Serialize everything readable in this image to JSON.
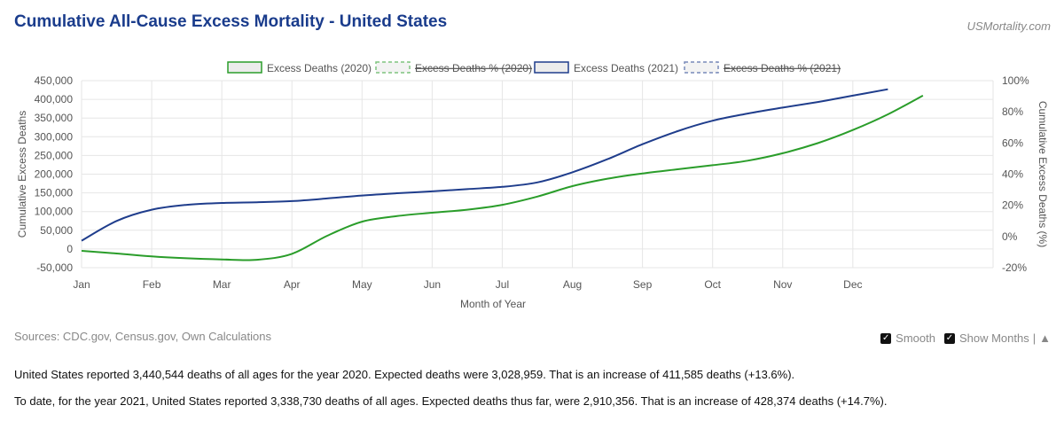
{
  "header": {
    "title": "Cumulative All-Cause Excess Mortality - United States",
    "brand": "USMortality.com"
  },
  "footer": {
    "sources": "Sources: CDC.gov, Census.gov, Own Calculations",
    "smooth_label": "Smooth",
    "show_months_label": "Show Months",
    "separator": "|",
    "collapse_symbol": "▲",
    "checkmark": "✓"
  },
  "summary": {
    "line1": "United States reported 3,440,544 deaths of all ages for the year 2020. Expected deaths were 3,028,959. That is an increase of 411,585 deaths (+13.6%).",
    "line2": "To date, for the year 2021, United States reported 3,338,730 deaths of all ages. Expected deaths thus far, were 2,910,356. That is an increase of 428,374 deaths (+14.7%)."
  },
  "colors": {
    "series2020": "#2a9d2a",
    "series2021": "#1f3d8c",
    "grid": "#e6e6e6"
  },
  "chart_data": {
    "type": "line",
    "xlabel": "Month of Year",
    "ylabel": "Cumulative Excess Deaths",
    "y2label": "Cumulative Excess Deaths (%)",
    "months": [
      "Jan",
      "Feb",
      "Mar",
      "Apr",
      "May",
      "Jun",
      "Jul",
      "Aug",
      "Sep",
      "Oct",
      "Nov",
      "Dec"
    ],
    "ylim": [
      -50000,
      450000
    ],
    "yticks": [
      -50000,
      0,
      50000,
      100000,
      150000,
      200000,
      250000,
      300000,
      350000,
      400000,
      450000
    ],
    "ytick_labels": [
      "-50,000",
      "0",
      "50,000",
      "100,000",
      "150,000",
      "200,000",
      "250,000",
      "300,000",
      "350,000",
      "400,000",
      "450,000"
    ],
    "y2lim": [
      -20,
      100
    ],
    "y2ticks": [
      -20,
      0,
      20,
      40,
      60,
      80,
      100
    ],
    "y2tick_labels": [
      "-20%",
      "0%",
      "20%",
      "40%",
      "60%",
      "80%",
      "100%"
    ],
    "grid": true,
    "legend_position": "top",
    "legend": [
      {
        "name": "Excess Deaths (2020)",
        "hidden": false
      },
      {
        "name": "Excess Deaths % (2020)",
        "hidden": true
      },
      {
        "name": "Excess Deaths (2021)",
        "hidden": false
      },
      {
        "name": "Excess Deaths % (2021)",
        "hidden": true
      }
    ],
    "series": [
      {
        "name": "Excess Deaths (2020)",
        "x": [
          0,
          0.5,
          1,
          1.5,
          2,
          2.5,
          3,
          3.5,
          4,
          4.5,
          5,
          5.5,
          6,
          6.5,
          7,
          7.5,
          8,
          8.5,
          9,
          9.5,
          10,
          10.5,
          11,
          11.5,
          12
        ],
        "values": [
          -5000,
          -12000,
          -20000,
          -25000,
          -28000,
          -29000,
          -13000,
          35000,
          73000,
          88000,
          97000,
          105000,
          118000,
          140000,
          168000,
          188000,
          202000,
          213000,
          224000,
          236000,
          256000,
          283000,
          318000,
          360000,
          410000
        ]
      },
      {
        "name": "Excess Deaths (2021)",
        "x": [
          0,
          0.5,
          1,
          1.5,
          2,
          2.5,
          3,
          3.5,
          4,
          4.5,
          5,
          5.5,
          6,
          6.5,
          7,
          7.5,
          8,
          8.5,
          9,
          9.5,
          10,
          10.5,
          11,
          11.5
        ],
        "values": [
          22000,
          75000,
          105000,
          118000,
          123000,
          125000,
          128000,
          135000,
          143000,
          149000,
          154000,
          160000,
          166000,
          178000,
          205000,
          240000,
          280000,
          315000,
          343000,
          362000,
          378000,
          393000,
          410000,
          427000
        ]
      }
    ]
  }
}
